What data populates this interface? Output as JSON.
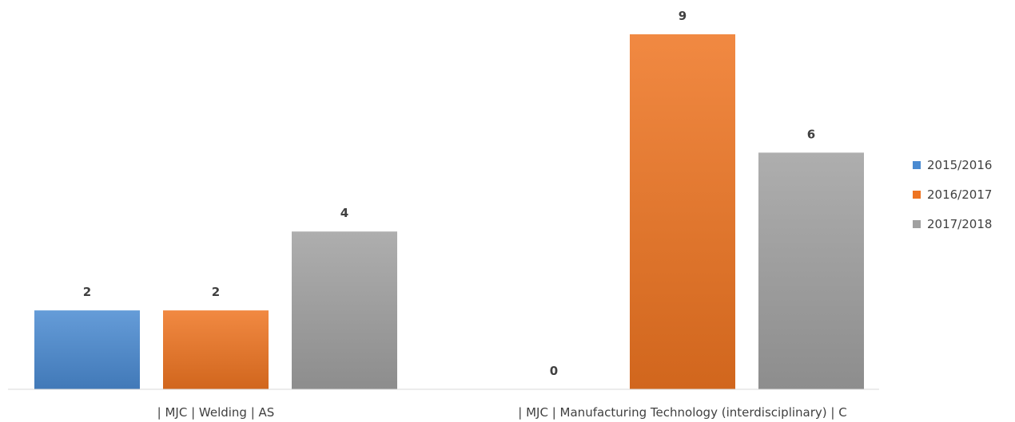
{
  "chart_data": {
    "type": "bar",
    "categories": [
      "| MJC | Welding | AS",
      "| MJC | Manufacturing Technology (interdisciplinary) | C"
    ],
    "series": [
      {
        "name": "2015/2016",
        "values": [
          2,
          0
        ],
        "color": "#4a8ad1"
      },
      {
        "name": "2016/2017",
        "values": [
          2,
          9
        ],
        "color": "#ee7421"
      },
      {
        "name": "2017/2018",
        "values": [
          4,
          6
        ],
        "color": "#a0a0a0"
      }
    ],
    "ylim": [
      0,
      9
    ],
    "grid": false,
    "legend_position": "right",
    "data_labels": true
  }
}
